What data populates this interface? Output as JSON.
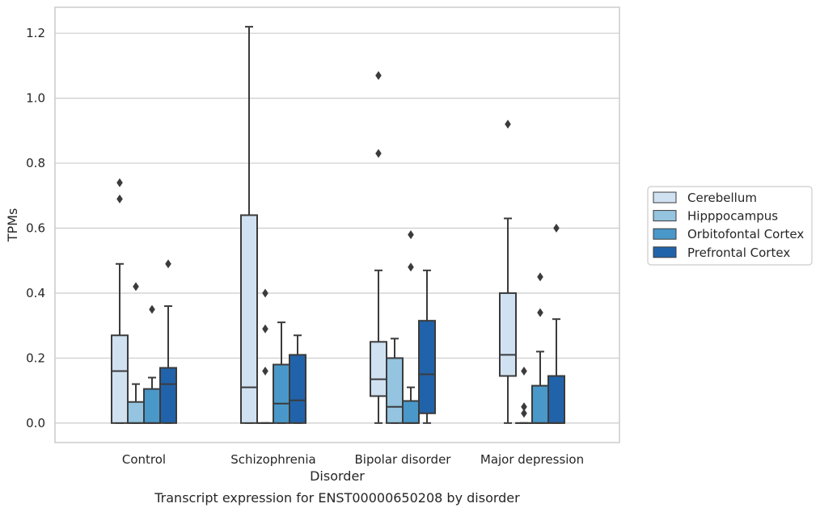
{
  "caption": "Transcript expression for ENST00000650208 by disorder",
  "colors": {
    "Cerebellum": "#d0e1f2",
    "Hipppocampus": "#94c4df",
    "Orbitofontal Cortex": "#4a98c9",
    "Prefrontal Cortex": "#2163aa",
    "box_edge": "#3b3b3b",
    "grid": "#cccccc",
    "frame": "#cccccc"
  },
  "chart_data": {
    "type": "box",
    "title": "",
    "xlabel": "Disorder",
    "ylabel": "TPMs",
    "ylim": [
      -0.06,
      1.28
    ],
    "yticks": [
      0.0,
      0.2,
      0.4,
      0.6,
      0.8,
      1.0,
      1.2
    ],
    "ytick_labels": [
      "0.0",
      "0.2",
      "0.4",
      "0.6",
      "0.8",
      "1.0",
      "1.2"
    ],
    "grid": true,
    "legend_position": "right",
    "categories": [
      "Control",
      "Schizophrenia",
      "Bipolar disorder",
      "Major depression"
    ],
    "series": [
      {
        "name": "Cerebellum",
        "boxes": [
          {
            "whislo": 0.0,
            "q1": 0.0,
            "med": 0.16,
            "q3": 0.27,
            "whishi": 0.49,
            "fliers": [
              0.74,
              0.69
            ]
          },
          {
            "whislo": 0.0,
            "q1": 0.0,
            "med": 0.11,
            "q3": 0.64,
            "whishi": 1.22,
            "fliers": []
          },
          {
            "whislo": 0.0,
            "q1": 0.083,
            "med": 0.135,
            "q3": 0.25,
            "whishi": 0.47,
            "fliers": [
              1.07,
              0.83
            ]
          },
          {
            "whislo": 0.0,
            "q1": 0.145,
            "med": 0.21,
            "q3": 0.4,
            "whishi": 0.63,
            "fliers": [
              0.92
            ]
          }
        ]
      },
      {
        "name": "Hipppocampus",
        "boxes": [
          {
            "whislo": 0.0,
            "q1": 0.0,
            "med": 0.0,
            "q3": 0.065,
            "whishi": 0.12,
            "fliers": [
              0.42
            ]
          },
          {
            "whislo": 0.0,
            "q1": 0.0,
            "med": 0.0,
            "q3": 0.0,
            "whishi": 0.0,
            "fliers": [
              0.4,
              0.29,
              0.16
            ]
          },
          {
            "whislo": 0.0,
            "q1": 0.0,
            "med": 0.05,
            "q3": 0.2,
            "whishi": 0.26,
            "fliers": []
          },
          {
            "whislo": 0.0,
            "q1": 0.0,
            "med": 0.0,
            "q3": 0.0,
            "whishi": 0.0,
            "fliers": [
              0.16,
              0.05,
              0.03
            ]
          }
        ]
      },
      {
        "name": "Orbitofontal Cortex",
        "boxes": [
          {
            "whislo": 0.0,
            "q1": 0.0,
            "med": 0.0,
            "q3": 0.105,
            "whishi": 0.14,
            "fliers": [
              0.35
            ]
          },
          {
            "whislo": 0.0,
            "q1": 0.0,
            "med": 0.06,
            "q3": 0.18,
            "whishi": 0.31,
            "fliers": []
          },
          {
            "whislo": 0.0,
            "q1": 0.0,
            "med": 0.0,
            "q3": 0.068,
            "whishi": 0.11,
            "fliers": [
              0.58,
              0.48
            ]
          },
          {
            "whislo": 0.0,
            "q1": 0.0,
            "med": 0.0,
            "q3": 0.115,
            "whishi": 0.22,
            "fliers": [
              0.45,
              0.34
            ]
          }
        ]
      },
      {
        "name": "Prefrontal Cortex",
        "boxes": [
          {
            "whislo": 0.0,
            "q1": 0.0,
            "med": 0.12,
            "q3": 0.17,
            "whishi": 0.36,
            "fliers": [
              0.49
            ]
          },
          {
            "whislo": 0.0,
            "q1": 0.0,
            "med": 0.07,
            "q3": 0.21,
            "whishi": 0.27,
            "fliers": []
          },
          {
            "whislo": 0.0,
            "q1": 0.03,
            "med": 0.15,
            "q3": 0.315,
            "whishi": 0.47,
            "fliers": []
          },
          {
            "whislo": 0.0,
            "q1": 0.0,
            "med": 0.0,
            "q3": 0.145,
            "whishi": 0.32,
            "fliers": [
              0.6
            ]
          }
        ]
      }
    ]
  }
}
